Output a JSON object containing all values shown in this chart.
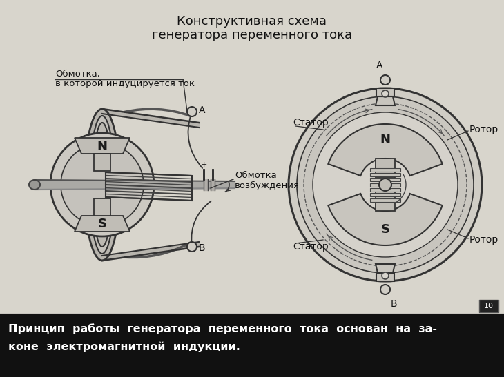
{
  "title_line1": "Конструктивная схема",
  "title_line2": "генератора переменного тока",
  "bg_color_top": "#d8d5cc",
  "bg_color_bot": "#111111",
  "bottom_text_line1": "Принцип  работы  генератора  переменного  тока  основан  на  за-",
  "bottom_text_line2": "коне  электромагнитной  индукции.",
  "label_obmotka": "Обмотка,",
  "label_v_kotoroy": "в которой индуцируется ток",
  "label_obmotka_vozb": "Обмотка\nвозбуждения",
  "label_N": "N",
  "label_S": "S",
  "label_A_left": "A",
  "label_B_left": "B",
  "label_A_right": "A",
  "label_B_right": "B",
  "label_stator_top": "Статор",
  "label_stator_bot": "Статор",
  "label_rotor_top": "Ротор",
  "label_rotor_bot": "Ротор",
  "label_page": "10",
  "line_color": "#333333",
  "fill_light": "#d0cdc5",
  "fill_mid": "#b8b5ae",
  "fill_dark": "#909090"
}
